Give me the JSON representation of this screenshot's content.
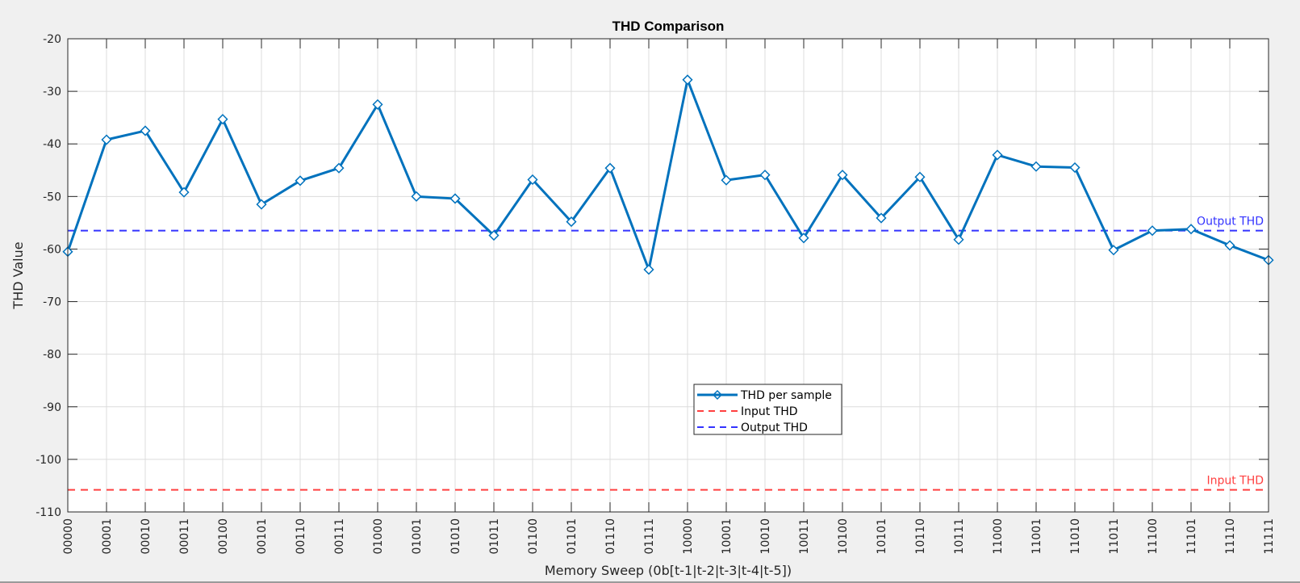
{
  "chart_data": {
    "type": "line",
    "title": "THD Comparison",
    "xlabel": "Memory Sweep (0b[t-1|t-2|t-3|t-4|t-5])",
    "ylabel": "THD Value",
    "ylim": [
      -110,
      -20
    ],
    "yticks": [
      -20,
      -30,
      -40,
      -50,
      -60,
      -70,
      -80,
      -90,
      -100,
      -110
    ],
    "grid": true,
    "legend_position": "center-bottom",
    "categories": [
      "00000",
      "00001",
      "00010",
      "00011",
      "00100",
      "00101",
      "00110",
      "00111",
      "01000",
      "01001",
      "01010",
      "01011",
      "01100",
      "01101",
      "01110",
      "01111",
      "10000",
      "10001",
      "10010",
      "10011",
      "10100",
      "10101",
      "10110",
      "10111",
      "11000",
      "11001",
      "11010",
      "11011",
      "11100",
      "11101",
      "11110",
      "11111"
    ],
    "series": [
      {
        "name": "THD per sample",
        "color": "#0072bd",
        "marker": "diamond",
        "values": [
          -60.5,
          -39.2,
          -37.5,
          -49.2,
          -35.3,
          -51.5,
          -47.0,
          -44.6,
          -32.5,
          -50.0,
          -50.4,
          -57.4,
          -46.8,
          -54.8,
          -44.6,
          -63.9,
          -27.8,
          -46.9,
          -45.9,
          -57.9,
          -45.9,
          -54.1,
          -46.3,
          -58.2,
          -42.1,
          -44.3,
          -44.5,
          -60.2,
          -56.5,
          -56.2,
          -59.3,
          -62.1
        ]
      }
    ],
    "reference_lines": [
      {
        "name": "Input THD",
        "value": -105.8,
        "color": "#ff4040",
        "label": "Input THD"
      },
      {
        "name": "Output THD",
        "value": -56.5,
        "color": "#3333ff",
        "label": "Output THD"
      }
    ]
  }
}
